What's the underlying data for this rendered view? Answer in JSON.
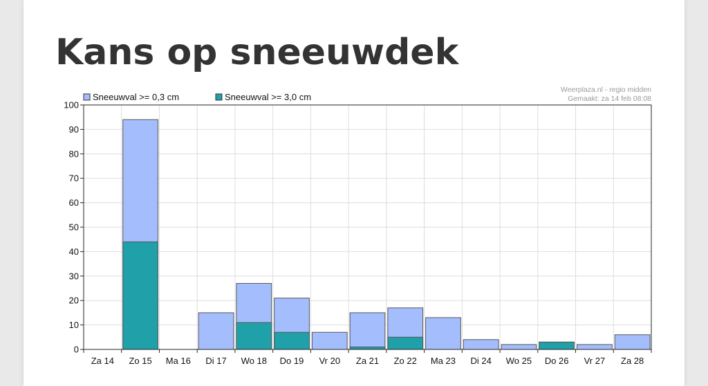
{
  "page": {
    "title": "Kans op sneeuwdek"
  },
  "chart_data": {
    "type": "bar",
    "stacked": "overlay",
    "credit_line1": "Weerplaza.nl - regio midden",
    "credit_line2": "Gemaakt: za 14 feb 08:08",
    "categories": [
      "Za 14",
      "Zo 15",
      "Ma 16",
      "Di 17",
      "Wo 18",
      "Do 19",
      "Vr 20",
      "Za 21",
      "Zo 22",
      "Ma 23",
      "Di 24",
      "Wo 25",
      "Do 26",
      "Vr 27",
      "Za 28"
    ],
    "series": [
      {
        "name": "Sneeuwval >= 0,3 cm",
        "color": "#a4bdfd",
        "values": [
          0,
          94,
          0,
          15,
          27,
          21,
          7,
          15,
          17,
          13,
          4,
          2,
          3,
          2,
          6
        ]
      },
      {
        "name": "Sneeuwval >= 3,0 cm",
        "color": "#20a0a8",
        "values": [
          0,
          44,
          0,
          0,
          11,
          7,
          0,
          1,
          5,
          0,
          0,
          0,
          3,
          0,
          0
        ]
      }
    ],
    "yticks": [
      0,
      10,
      20,
      30,
      40,
      50,
      60,
      70,
      80,
      90,
      100
    ],
    "ylim": [
      0,
      100
    ],
    "grid": true,
    "legend_position": "top-left"
  }
}
